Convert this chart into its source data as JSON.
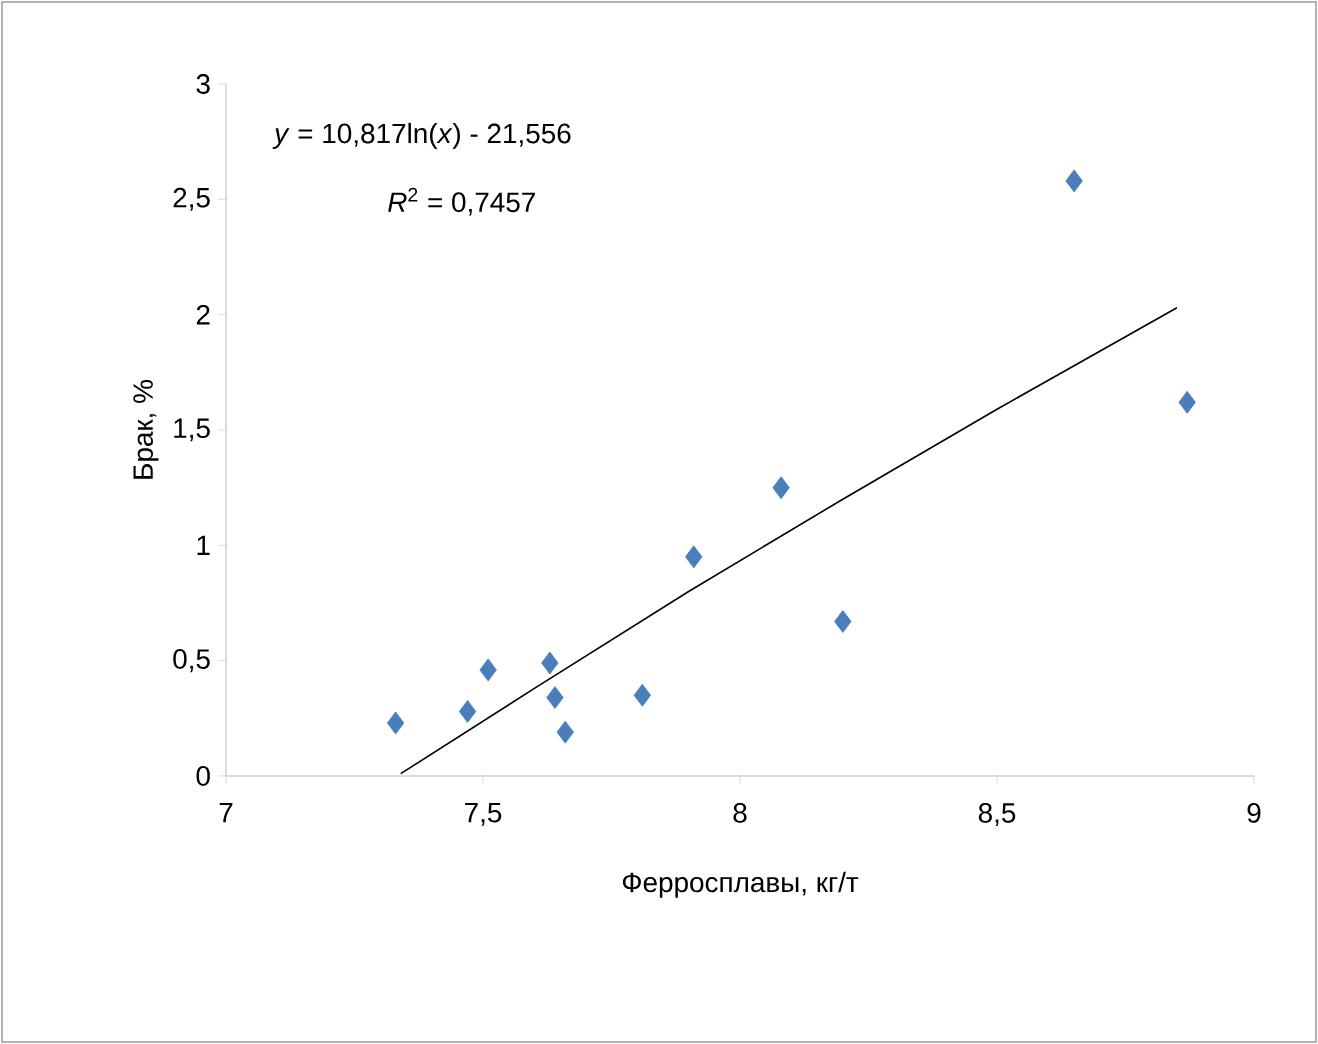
{
  "chart_data": {
    "type": "scatter",
    "xlabel": "Ферросплавы, кг/т",
    "ylabel": "Брак, %",
    "annotations": [
      "*y* = 10,817ln(*x*)  - 21,556",
      "*R*$^{2}$ = 0,7457"
    ],
    "xlim": [
      7,
      9
    ],
    "ylim": [
      0,
      3
    ],
    "xticks": [
      7,
      {
        "value": 7.5,
        "label": "7,5"
      },
      8,
      {
        "value": 8.5,
        "label": "8,5"
      },
      9
    ],
    "yticks": [
      0,
      {
        "value": 0.5,
        "label": "0,5"
      },
      1,
      {
        "value": 1.5,
        "label": "1,5"
      },
      2,
      {
        "value": 2.5,
        "label": "2,5"
      },
      3
    ],
    "grid": false,
    "series": [
      {
        "marker": "diamond",
        "color": "#4a7ebb",
        "x": [
          7.33,
          7.47,
          7.51,
          7.63,
          7.64,
          7.66,
          7.81,
          7.91,
          8.08,
          8.2,
          8.65,
          8.87
        ],
        "values": [
          0.23,
          0.28,
          0.46,
          0.49,
          0.34,
          0.19,
          0.35,
          0.95,
          1.25,
          0.67,
          2.58,
          1.62
        ]
      },
      {
        "type": "line",
        "marker": "none",
        "color": "#000000",
        "x": [
          7.34,
          7.6,
          7.9,
          8.2,
          8.5,
          8.85
        ],
        "values": [
          0.01,
          0.38,
          0.8,
          1.2,
          1.59,
          2.03
        ]
      }
    ]
  }
}
